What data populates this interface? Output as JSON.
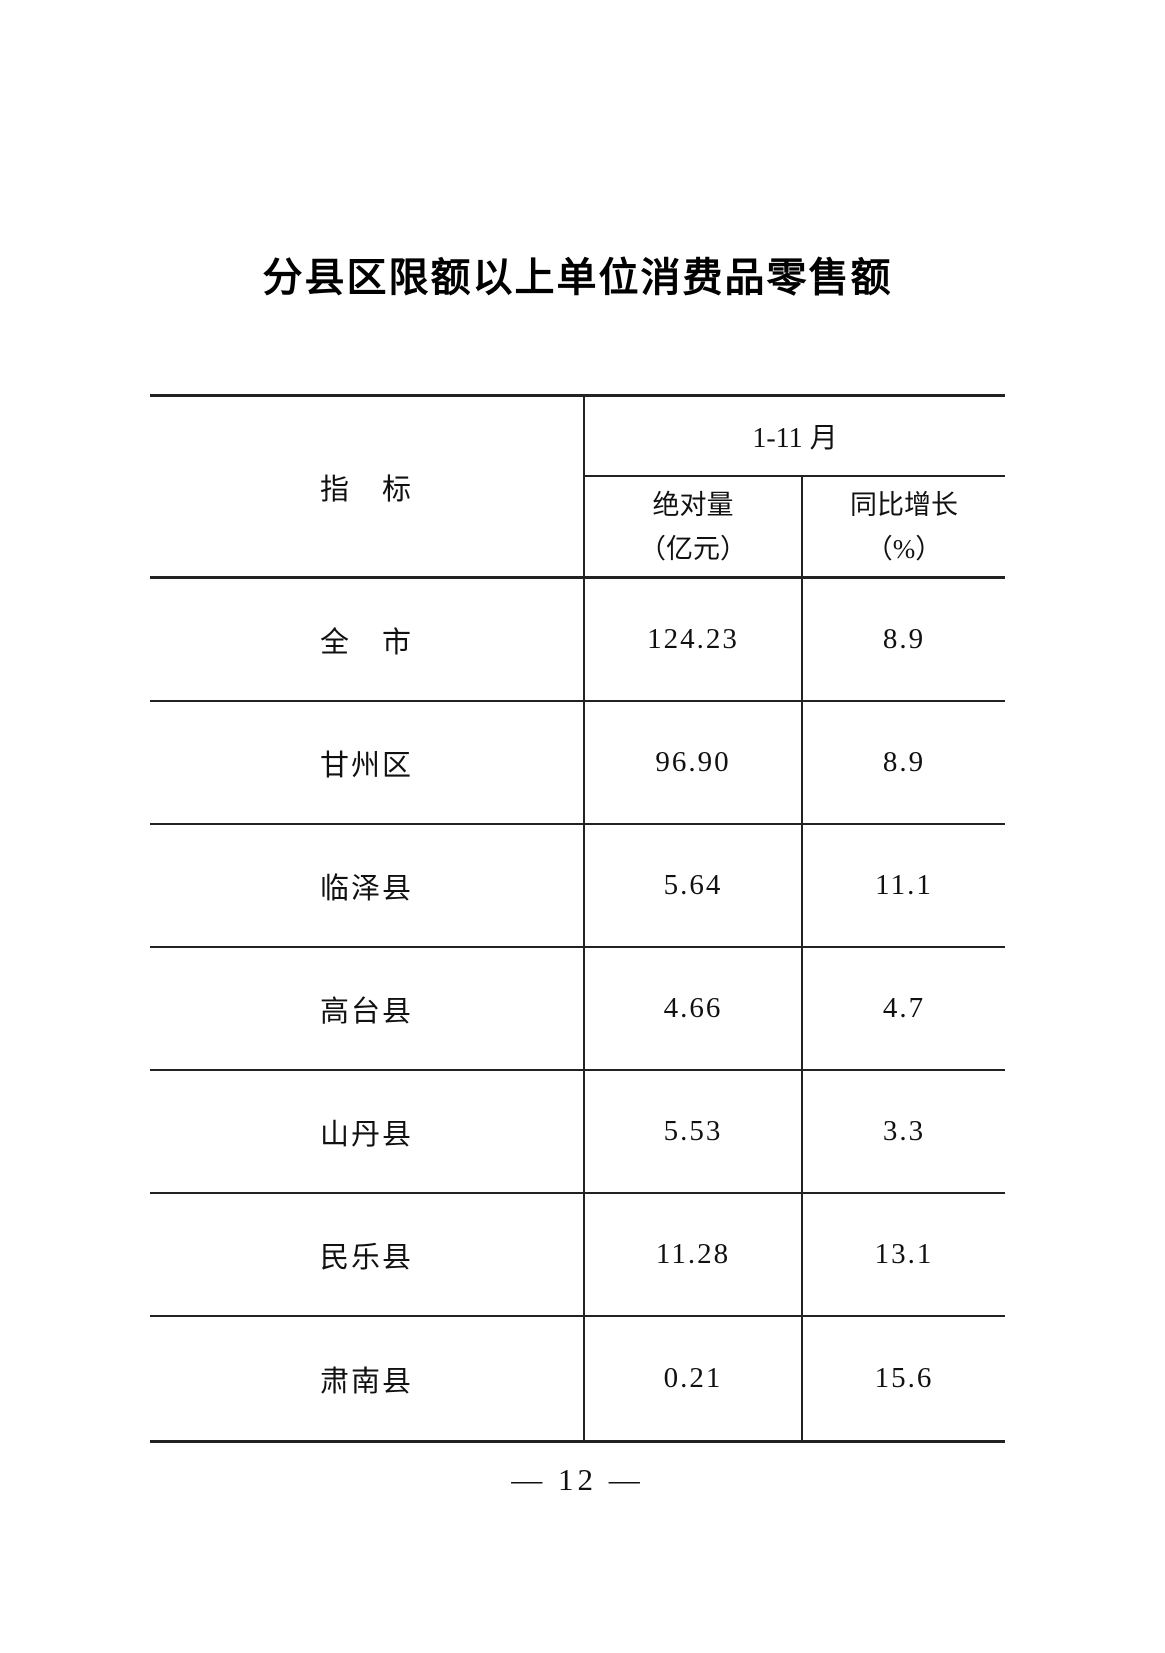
{
  "page": {
    "title": "分县区限额以上单位消费品零售额",
    "footer": "— 12 —",
    "background_color": "#ffffff",
    "border_color": "#222222"
  },
  "table": {
    "header": {
      "indicator": "指　标",
      "period": "1-11 月",
      "absolute_line1": "绝对量",
      "absolute_line2": "（亿元）",
      "growth_line1": "同比增长",
      "growth_line2": "（%）"
    },
    "rows": [
      {
        "indicator": "全　市",
        "absolute": "124.23",
        "growth": "8.9"
      },
      {
        "indicator": "甘州区",
        "absolute": "96.90",
        "growth": "8.9"
      },
      {
        "indicator": "临泽县",
        "absolute": "5.64",
        "growth": "11.1"
      },
      {
        "indicator": "高台县",
        "absolute": "4.66",
        "growth": "4.7"
      },
      {
        "indicator": "山丹县",
        "absolute": "5.53",
        "growth": "3.3"
      },
      {
        "indicator": "民乐县",
        "absolute": "11.28",
        "growth": "13.1"
      },
      {
        "indicator": "肃南县",
        "absolute": "0.21",
        "growth": "15.6"
      }
    ]
  }
}
